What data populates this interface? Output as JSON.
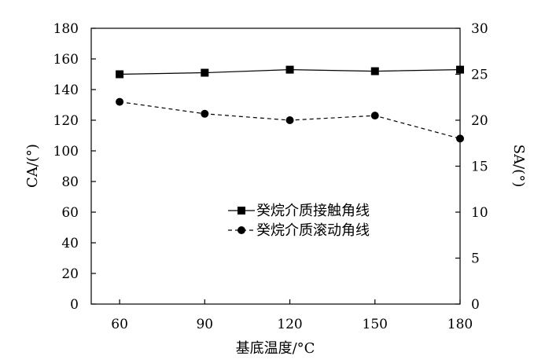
{
  "chart_data": {
    "type": "line",
    "x": [
      60,
      90,
      120,
      150,
      180
    ],
    "xlabel": "基底温度/°C",
    "xticks": [
      "60",
      "90",
      "120",
      "150",
      "180"
    ],
    "xlim": [
      50,
      180
    ],
    "y_left": {
      "label": "CA/(°)",
      "lim": [
        0,
        180
      ],
      "ticks": [
        "0",
        "20",
        "40",
        "60",
        "80",
        "100",
        "120",
        "140",
        "160",
        "180"
      ]
    },
    "y_right": {
      "label": "SA/(°)",
      "lim": [
        0,
        30
      ],
      "ticks": [
        "0",
        "5",
        "10",
        "15",
        "20",
        "25",
        "30"
      ]
    },
    "series": [
      {
        "name": "癸烷介质接触角线",
        "axis": "left",
        "marker": "square",
        "line": "solid",
        "values": [
          150,
          151,
          153,
          152,
          153
        ]
      },
      {
        "name": "癸烷介质滚动角线",
        "axis": "right",
        "marker": "circle",
        "line": "dashed",
        "values": [
          22,
          20.7,
          20,
          20.5,
          18
        ]
      }
    ],
    "legend_position": "center-right",
    "grid": false,
    "color": "#000000"
  }
}
